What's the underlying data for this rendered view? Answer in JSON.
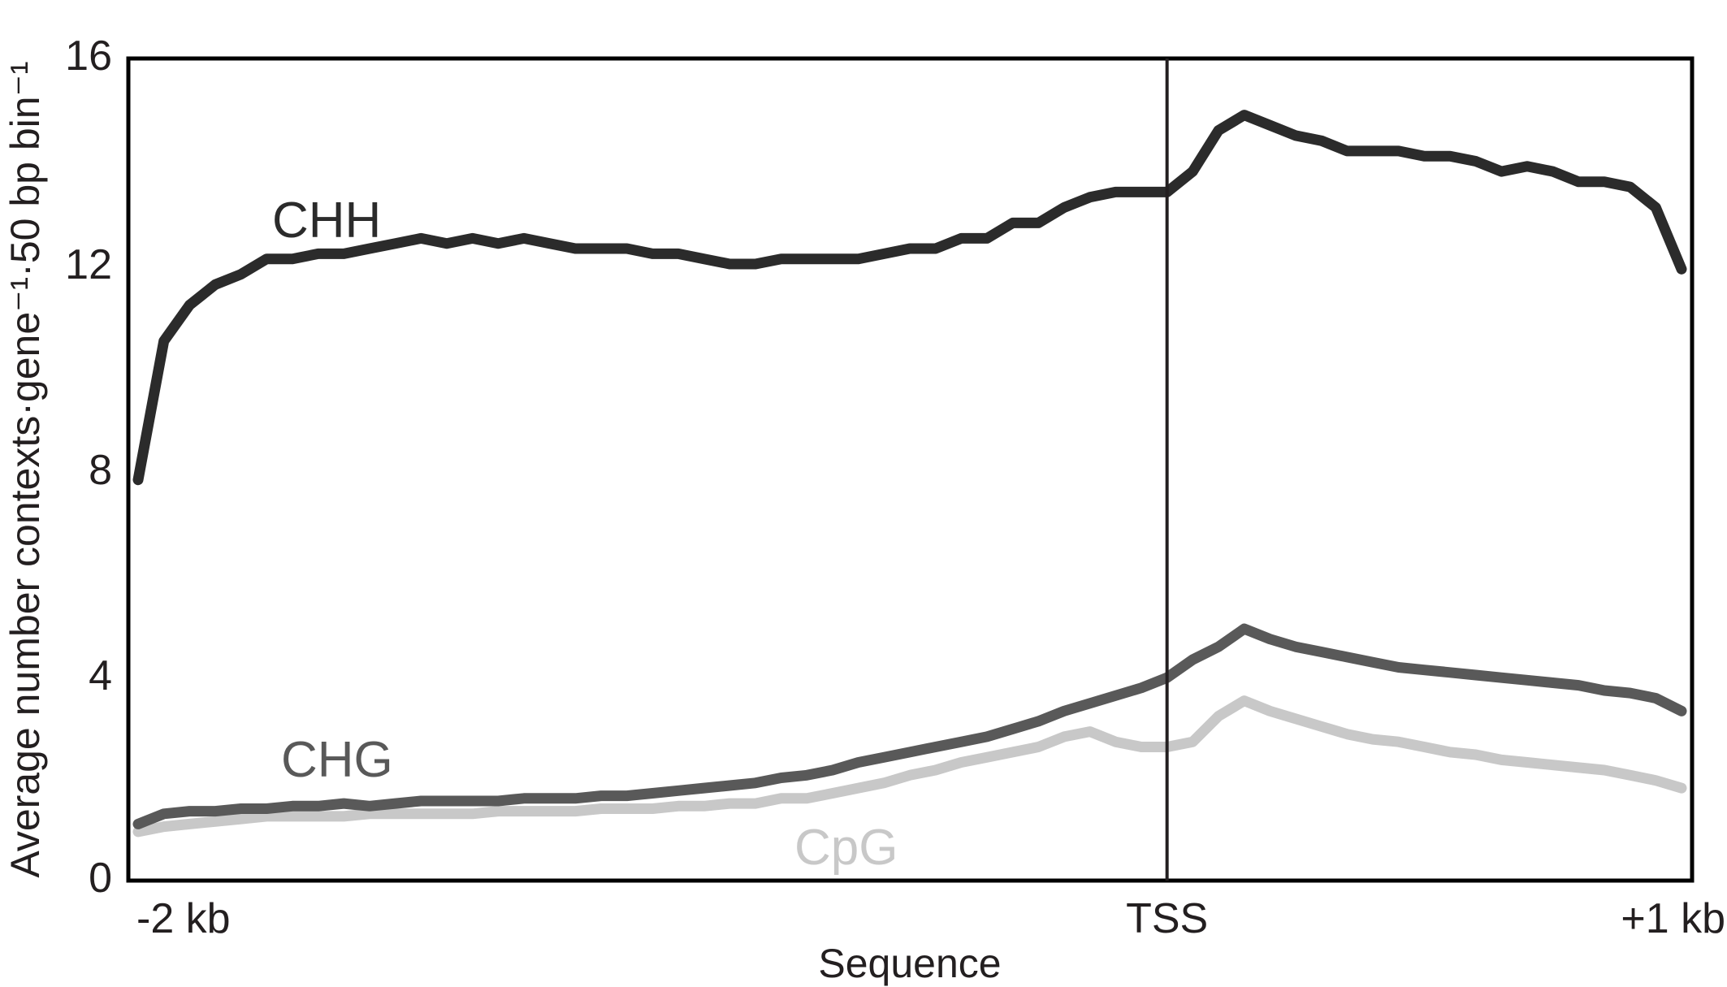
{
  "chart_data": {
    "type": "line",
    "title": "",
    "xlabel": "Sequence",
    "ylabel": "Average number contexts·gene⁻¹·50 bp bin⁻¹",
    "ylim": [
      0,
      16
    ],
    "yticks": [
      "0",
      "4",
      "8",
      "12",
      "16"
    ],
    "xticks": [
      {
        "x": -2000,
        "label": "-2 kb"
      },
      {
        "x": 0,
        "label": "TSS"
      },
      {
        "x": 1000,
        "label": "+1 kb"
      }
    ],
    "xlim": [
      -2000,
      1000
    ],
    "vline": {
      "x": 0,
      "label": "TSS"
    },
    "grid": false,
    "legend": "inline labels",
    "x": [
      -2000,
      -1950,
      -1900,
      -1850,
      -1800,
      -1750,
      -1700,
      -1650,
      -1600,
      -1550,
      -1500,
      -1450,
      -1400,
      -1350,
      -1300,
      -1250,
      -1200,
      -1150,
      -1100,
      -1050,
      -1000,
      -950,
      -900,
      -850,
      -800,
      -750,
      -700,
      -650,
      -600,
      -550,
      -500,
      -450,
      -400,
      -350,
      -300,
      -250,
      -200,
      -150,
      -100,
      -50,
      0,
      50,
      100,
      150,
      200,
      250,
      300,
      350,
      400,
      450,
      500,
      550,
      600,
      650,
      700,
      750,
      800,
      850,
      900,
      950,
      1000
    ],
    "series": [
      {
        "name": "CHH",
        "color": "#2b2b2b",
        "values": [
          7.8,
          10.5,
          11.2,
          11.6,
          11.8,
          12.1,
          12.1,
          12.2,
          12.2,
          12.3,
          12.4,
          12.5,
          12.4,
          12.5,
          12.4,
          12.5,
          12.4,
          12.3,
          12.3,
          12.3,
          12.2,
          12.2,
          12.1,
          12.0,
          12.0,
          12.1,
          12.1,
          12.1,
          12.1,
          12.2,
          12.3,
          12.3,
          12.5,
          12.5,
          12.8,
          12.8,
          13.1,
          13.3,
          13.4,
          13.4,
          13.4,
          13.8,
          14.6,
          14.9,
          14.7,
          14.5,
          14.4,
          14.2,
          14.2,
          14.2,
          14.1,
          14.1,
          14.0,
          13.8,
          13.9,
          13.8,
          13.6,
          13.6,
          13.5,
          13.1,
          11.9
        ]
      },
      {
        "name": "CHG",
        "color": "#595959",
        "values": [
          1.1,
          1.3,
          1.35,
          1.35,
          1.4,
          1.4,
          1.45,
          1.45,
          1.5,
          1.45,
          1.5,
          1.55,
          1.55,
          1.55,
          1.55,
          1.6,
          1.6,
          1.6,
          1.65,
          1.65,
          1.7,
          1.75,
          1.8,
          1.85,
          1.9,
          2.0,
          2.05,
          2.15,
          2.3,
          2.4,
          2.5,
          2.6,
          2.7,
          2.8,
          2.95,
          3.1,
          3.3,
          3.45,
          3.6,
          3.75,
          3.95,
          4.3,
          4.55,
          4.9,
          4.7,
          4.55,
          4.45,
          4.35,
          4.25,
          4.15,
          4.1,
          4.05,
          4.0,
          3.95,
          3.9,
          3.85,
          3.8,
          3.7,
          3.65,
          3.55,
          3.3
        ]
      },
      {
        "name": "CpG",
        "color": "#c8c8c8",
        "values": [
          0.95,
          1.05,
          1.1,
          1.15,
          1.2,
          1.25,
          1.25,
          1.25,
          1.25,
          1.3,
          1.3,
          1.3,
          1.3,
          1.3,
          1.35,
          1.35,
          1.35,
          1.35,
          1.4,
          1.4,
          1.4,
          1.45,
          1.45,
          1.5,
          1.5,
          1.6,
          1.6,
          1.7,
          1.8,
          1.9,
          2.05,
          2.15,
          2.3,
          2.4,
          2.5,
          2.6,
          2.8,
          2.9,
          2.7,
          2.6,
          2.6,
          2.7,
          3.2,
          3.5,
          3.3,
          3.15,
          3.0,
          2.85,
          2.75,
          2.7,
          2.6,
          2.5,
          2.45,
          2.35,
          2.3,
          2.25,
          2.2,
          2.15,
          2.05,
          1.95,
          1.8
        ]
      }
    ]
  }
}
